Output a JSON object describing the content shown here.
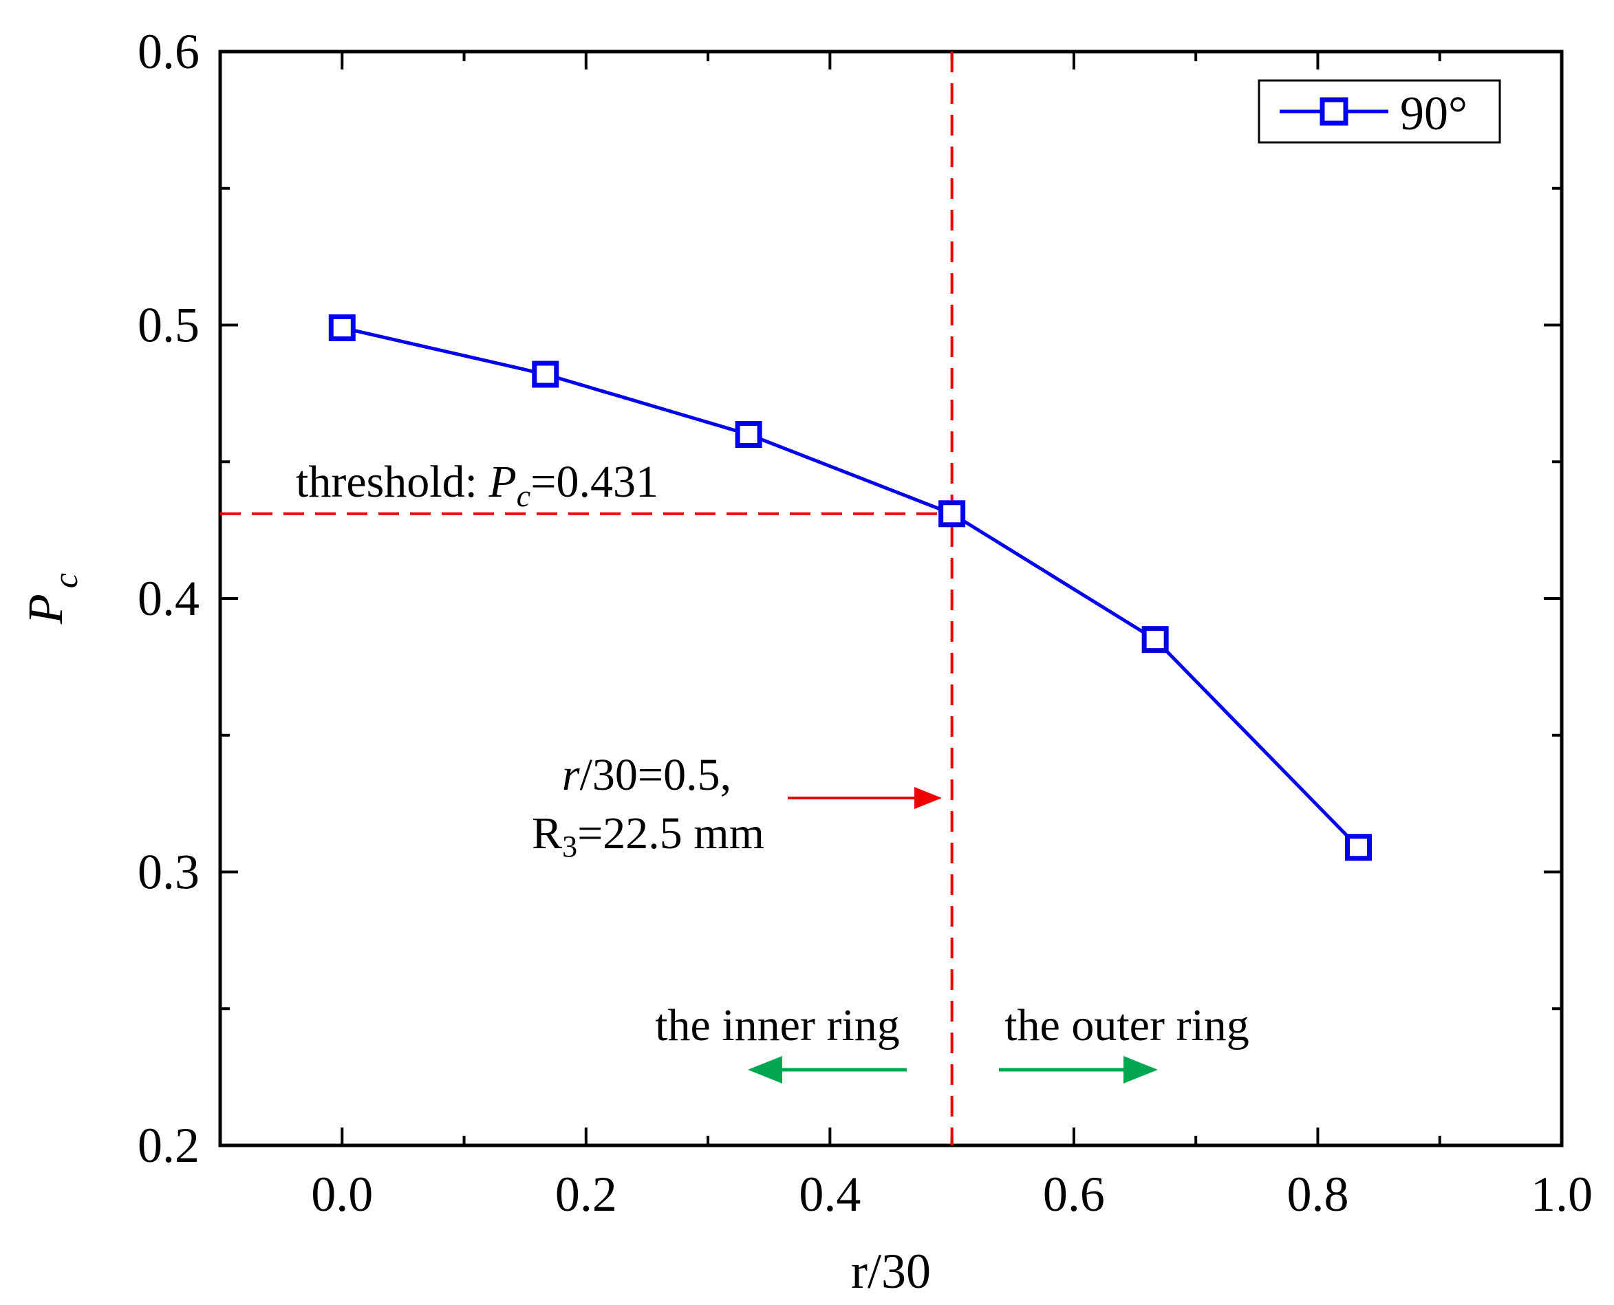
{
  "chart_data": {
    "type": "line",
    "title": "",
    "xlabel": "r/30",
    "ylabel": {
      "main": "P",
      "sub": "c"
    },
    "xlim": [
      -0.1,
      1.0
    ],
    "ylim": [
      0.2,
      0.6
    ],
    "x_ticks": [
      0.0,
      0.2,
      0.4,
      0.6,
      0.8,
      1.0
    ],
    "x_tick_labels": [
      "0.0",
      "0.2",
      "0.4",
      "0.6",
      "0.8",
      "1.0"
    ],
    "y_ticks": [
      0.2,
      0.3,
      0.4,
      0.5,
      0.6
    ],
    "y_tick_labels": [
      "0.2",
      "0.3",
      "0.4",
      "0.5",
      "0.6"
    ],
    "grid": false,
    "legend_position": "top-right",
    "series": [
      {
        "name": "90°",
        "color": "#0000ee",
        "marker": "open-square",
        "x": [
          0.0,
          0.1667,
          0.3333,
          0.5,
          0.6667,
          0.8333
        ],
        "y": [
          0.499,
          0.482,
          0.46,
          0.431,
          0.385,
          0.309
        ]
      }
    ],
    "reference_lines": {
      "threshold_y": 0.431,
      "boundary_x": 0.5,
      "color": "#ee0000"
    },
    "annotations": {
      "threshold": {
        "prefix": "threshold: ",
        "var": "P",
        "sub": "c",
        "suffix": "=0.431"
      },
      "boundary_line1": {
        "var": "r",
        "suffix": "/30=0.5,"
      },
      "boundary_line2": {
        "main": "R",
        "sub": "3",
        "suffix": "=22.5 mm"
      },
      "inner_ring": "the inner ring",
      "outer_ring": "the outer ring",
      "arrow_color": "#00a651"
    }
  }
}
